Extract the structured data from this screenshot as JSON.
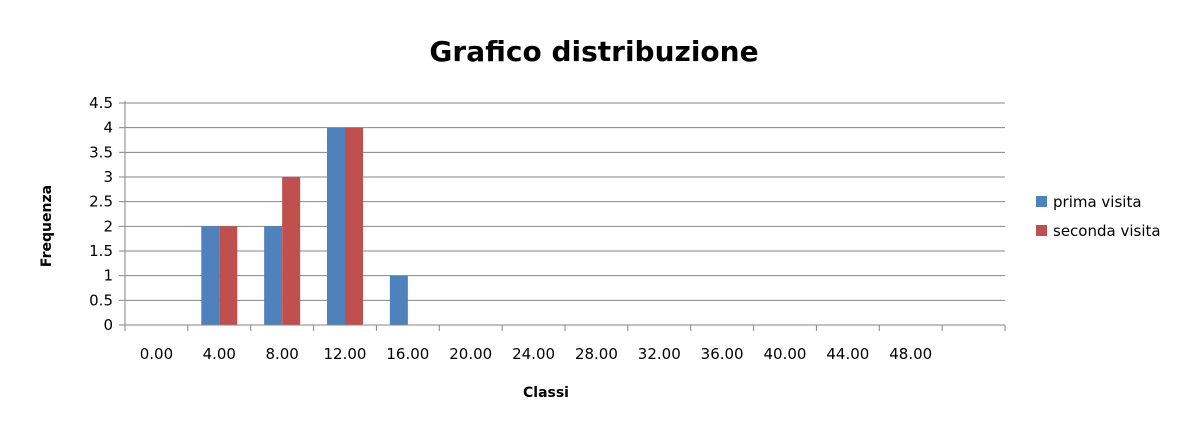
{
  "chart_data": {
    "type": "bar",
    "title": "Grafico distribuzione",
    "xlabel": "Classi",
    "ylabel": "Frequenza",
    "categories": [
      "0.00",
      "4.00",
      "8.00",
      "12.00",
      "16.00",
      "20.00",
      "24.00",
      "28.00",
      "32.00",
      "36.00",
      "40.00",
      "44.00",
      "48.00",
      ""
    ],
    "series": [
      {
        "name": "prima visita",
        "color": "#4F81BD",
        "values": [
          0,
          2,
          2,
          4,
          1,
          0,
          0,
          0,
          0,
          0,
          0,
          0,
          0,
          0
        ]
      },
      {
        "name": "seconda visita",
        "color": "#C0504D",
        "values": [
          0,
          2,
          3,
          4,
          0,
          0,
          0,
          0,
          0,
          0,
          0,
          0,
          0,
          0
        ]
      }
    ],
    "ylim": [
      0,
      4.5
    ],
    "yticks": [
      "0",
      "0.5",
      "1",
      "1.5",
      "2",
      "2.5",
      "3",
      "3.5",
      "4",
      "4.5"
    ],
    "grid": true,
    "legend": "right"
  }
}
